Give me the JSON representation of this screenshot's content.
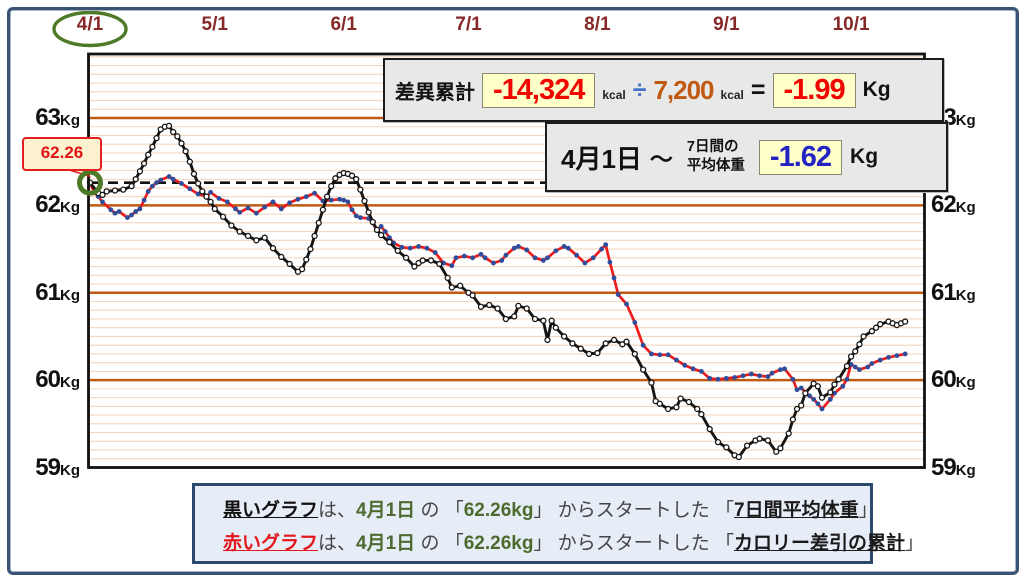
{
  "annotations": {
    "start_callout": "62.26",
    "baseline_value": 62.26,
    "highlighted_tick": "4/1"
  },
  "info_boxes": {
    "diff": {
      "label": "差異累計",
      "value": "-14,324",
      "unit1": "kcal",
      "op": "÷",
      "divisor": "7,200",
      "unit2": "kcal",
      "equals": "=",
      "result": "-1.99",
      "result_unit": "Kg"
    },
    "avg": {
      "date": "4月1日",
      "tilde": "〜",
      "label1": "7日間の",
      "label2": "平均体重",
      "value": "-1.62",
      "unit": "Kg"
    }
  },
  "legend": {
    "lines": [
      {
        "segments": [
          {
            "t": "黒いグラフ",
            "s": "ku"
          },
          {
            "t": "は、",
            "s": "plain"
          },
          {
            "t": "4月1日",
            "s": "green"
          },
          {
            "t": " の 「",
            "s": "plain"
          },
          {
            "t": "62.26kg",
            "s": "green"
          },
          {
            "t": "」 からスタートした 「",
            "s": "plain"
          },
          {
            "t": "7日間平均体重",
            "s": "bu"
          },
          {
            "t": "」",
            "s": "plain"
          }
        ]
      },
      {
        "segments": [
          {
            "t": "赤いグラフ",
            "s": "ru"
          },
          {
            "t": "は、",
            "s": "plain"
          },
          {
            "t": "4月1日",
            "s": "green"
          },
          {
            "t": " の 「",
            "s": "plain"
          },
          {
            "t": "62.26kg",
            "s": "green"
          },
          {
            "t": "」 からスタートした 「",
            "s": "plain"
          },
          {
            "t": "カロリー差引の累計",
            "s": "bu"
          },
          {
            "t": "」",
            "s": "plain"
          }
        ]
      }
    ]
  },
  "colors": {
    "tick_maroon": "#872828",
    "grid_major": "#c05a13",
    "grid_minor": "#f4d7bf",
    "black_series": "#151515",
    "red_series": "#ee1c1c",
    "navy_dot": "#2e4d9b",
    "green_accent": "#4e7a28",
    "value_red": "#f00600",
    "value_blue": "#2424c4",
    "divisor_orange": "#c05a13"
  },
  "chart_data": {
    "type": "line",
    "title": "",
    "xlabel": "",
    "ylabel": "Kg",
    "x_unit": "days_from_april_1",
    "ylim": [
      59,
      63.72
    ],
    "grid": {
      "major_kg": [
        60,
        61,
        62,
        63
      ],
      "minor_step_kg": 0.1
    },
    "x_ticks": [
      {
        "label": "4/1",
        "day": 0,
        "highlight": true
      },
      {
        "label": "5/1",
        "day": 30
      },
      {
        "label": "6/1",
        "day": 61
      },
      {
        "label": "7/1",
        "day": 91
      },
      {
        "label": "8/1",
        "day": 122
      },
      {
        "label": "9/1",
        "day": 153
      },
      {
        "label": "10/1",
        "day": 183
      }
    ],
    "y_ticks": [
      {
        "num": "63",
        "unit": "Kg",
        "value": 63
      },
      {
        "num": "62",
        "unit": "Kg",
        "value": 62
      },
      {
        "num": "61",
        "unit": "Kg",
        "value": 61
      },
      {
        "num": "60",
        "unit": "Kg",
        "value": 60
      },
      {
        "num": "59",
        "unit": "Kg",
        "value": 59
      }
    ],
    "baseline": {
      "value": 62.26,
      "style": "black-dashed"
    },
    "series": [
      {
        "name": "7日間平均体重",
        "color": "#151515",
        "marker": "white-circle",
        "points": [
          [
            0,
            62.26
          ],
          [
            2,
            62.14
          ],
          [
            3,
            62.12
          ],
          [
            4,
            62.16
          ],
          [
            6,
            62.17
          ],
          [
            8,
            62.18
          ],
          [
            10,
            62.22
          ],
          [
            11,
            62.3
          ],
          [
            12,
            62.39
          ],
          [
            13,
            62.48
          ],
          [
            14,
            62.58
          ],
          [
            15,
            62.67
          ],
          [
            16,
            62.77
          ],
          [
            17,
            62.87
          ],
          [
            18,
            62.9
          ],
          [
            19,
            62.91
          ],
          [
            20,
            62.84
          ],
          [
            21,
            62.79
          ],
          [
            22,
            62.71
          ],
          [
            23,
            62.62
          ],
          [
            24,
            62.5
          ],
          [
            25,
            62.36
          ],
          [
            26,
            62.25
          ],
          [
            27,
            62.16
          ],
          [
            28,
            62.1
          ],
          [
            29,
            62.04
          ],
          [
            30,
            61.96
          ],
          [
            32,
            61.87
          ],
          [
            34,
            61.77
          ],
          [
            36,
            61.7
          ],
          [
            38,
            61.65
          ],
          [
            40,
            61.6
          ],
          [
            42,
            61.63
          ],
          [
            44,
            61.51
          ],
          [
            46,
            61.41
          ],
          [
            48,
            61.33
          ],
          [
            50,
            61.24
          ],
          [
            51,
            61.27
          ],
          [
            52,
            61.38
          ],
          [
            53,
            61.5
          ],
          [
            54,
            61.65
          ],
          [
            55,
            61.8
          ],
          [
            56,
            61.95
          ],
          [
            57,
            62.1
          ],
          [
            58,
            62.22
          ],
          [
            59,
            62.31
          ],
          [
            60,
            62.35
          ],
          [
            61,
            62.37
          ],
          [
            62,
            62.36
          ],
          [
            63,
            62.34
          ],
          [
            64,
            62.3
          ],
          [
            65,
            62.18
          ],
          [
            66,
            62.05
          ],
          [
            67,
            61.92
          ],
          [
            68,
            61.81
          ],
          [
            69,
            61.72
          ],
          [
            70,
            61.66
          ],
          [
            72,
            61.58
          ],
          [
            74,
            61.48
          ],
          [
            76,
            61.4
          ],
          [
            78,
            61.3
          ],
          [
            79,
            61.34
          ],
          [
            80,
            61.37
          ],
          [
            82,
            61.37
          ],
          [
            84,
            61.33
          ],
          [
            86,
            61.17
          ],
          [
            87,
            61.06
          ],
          [
            89,
            61.08
          ],
          [
            91,
            61.0
          ],
          [
            92,
            60.97
          ],
          [
            94,
            60.84
          ],
          [
            96,
            60.86
          ],
          [
            98,
            60.82
          ],
          [
            100,
            60.7
          ],
          [
            102,
            60.73
          ],
          [
            103,
            60.85
          ],
          [
            105,
            60.82
          ],
          [
            107,
            60.7
          ],
          [
            109,
            60.68
          ],
          [
            110,
            60.46
          ],
          [
            111,
            60.68
          ],
          [
            112,
            60.6
          ],
          [
            114,
            60.5
          ],
          [
            116,
            60.42
          ],
          [
            118,
            60.36
          ],
          [
            120,
            60.3
          ],
          [
            122,
            60.31
          ],
          [
            124,
            60.42
          ],
          [
            126,
            60.46
          ],
          [
            128,
            60.41
          ],
          [
            129,
            60.44
          ],
          [
            131,
            60.3
          ],
          [
            133,
            60.12
          ],
          [
            135,
            59.97
          ],
          [
            136,
            59.76
          ],
          [
            137,
            59.73
          ],
          [
            139,
            59.67
          ],
          [
            141,
            59.69
          ],
          [
            142,
            59.79
          ],
          [
            144,
            59.75
          ],
          [
            146,
            59.67
          ],
          [
            147,
            59.61
          ],
          [
            149,
            59.44
          ],
          [
            151,
            59.29
          ],
          [
            153,
            59.23
          ],
          [
            155,
            59.14
          ],
          [
            156,
            59.12
          ],
          [
            158,
            59.25
          ],
          [
            160,
            59.31
          ],
          [
            161,
            59.33
          ],
          [
            163,
            59.31
          ],
          [
            165,
            59.18
          ],
          [
            166,
            59.22
          ],
          [
            168,
            59.39
          ],
          [
            169,
            59.55
          ],
          [
            170,
            59.67
          ],
          [
            171,
            59.71
          ],
          [
            172,
            59.85
          ],
          [
            174,
            59.96
          ],
          [
            175,
            59.93
          ],
          [
            176,
            59.8
          ],
          [
            178,
            59.86
          ],
          [
            179,
            59.95
          ],
          [
            180,
            60.01
          ],
          [
            182,
            60.16
          ],
          [
            183,
            60.27
          ],
          [
            184,
            60.33
          ],
          [
            185,
            60.41
          ],
          [
            186,
            60.5
          ],
          [
            188,
            60.56
          ],
          [
            189,
            60.6
          ],
          [
            190,
            60.64
          ],
          [
            192,
            60.67
          ],
          [
            193,
            60.65
          ],
          [
            194,
            60.63
          ],
          [
            195,
            60.65
          ],
          [
            196,
            60.67
          ]
        ]
      },
      {
        "name": "カロリー差引の累計",
        "color": "#ee1c1c",
        "marker": "navy-dot",
        "points": [
          [
            0,
            62.26
          ],
          [
            1,
            62.15
          ],
          [
            2,
            62.1
          ],
          [
            3,
            62.04
          ],
          [
            5,
            61.95
          ],
          [
            6,
            61.91
          ],
          [
            7,
            61.93
          ],
          [
            9,
            61.86
          ],
          [
            10,
            61.89
          ],
          [
            11,
            61.93
          ],
          [
            12,
            61.96
          ],
          [
            13,
            62.06
          ],
          [
            14,
            62.16
          ],
          [
            15,
            62.22
          ],
          [
            16,
            62.26
          ],
          [
            17,
            62.29
          ],
          [
            19,
            62.33
          ],
          [
            20,
            62.3
          ],
          [
            22,
            62.25
          ],
          [
            24,
            62.19
          ],
          [
            26,
            62.13
          ],
          [
            28,
            62.1
          ],
          [
            29,
            62.15
          ],
          [
            31,
            62.08
          ],
          [
            33,
            62.04
          ],
          [
            35,
            61.96
          ],
          [
            36,
            61.92
          ],
          [
            38,
            61.97
          ],
          [
            40,
            61.91
          ],
          [
            42,
            61.98
          ],
          [
            44,
            62.04
          ],
          [
            46,
            61.96
          ],
          [
            48,
            62.03
          ],
          [
            50,
            62.07
          ],
          [
            52,
            62.1
          ],
          [
            54,
            62.14
          ],
          [
            56,
            62.05
          ],
          [
            58,
            62.06
          ],
          [
            60,
            62.07
          ],
          [
            61,
            62.06
          ],
          [
            62,
            62.04
          ],
          [
            63,
            61.95
          ],
          [
            64,
            61.88
          ],
          [
            65,
            61.86
          ],
          [
            67,
            61.85
          ],
          [
            68,
            61.8
          ],
          [
            69,
            61.71
          ],
          [
            70,
            61.76
          ],
          [
            71,
            61.7
          ],
          [
            72,
            61.63
          ],
          [
            73,
            61.57
          ],
          [
            75,
            61.52
          ],
          [
            77,
            61.51
          ],
          [
            79,
            61.53
          ],
          [
            81,
            61.51
          ],
          [
            83,
            61.46
          ],
          [
            85,
            61.34
          ],
          [
            87,
            61.31
          ],
          [
            88,
            61.4
          ],
          [
            90,
            61.42
          ],
          [
            92,
            61.4
          ],
          [
            94,
            61.44
          ],
          [
            95,
            61.4
          ],
          [
            97,
            61.34
          ],
          [
            99,
            61.37
          ],
          [
            100,
            61.43
          ],
          [
            102,
            61.51
          ],
          [
            103,
            61.53
          ],
          [
            105,
            61.49
          ],
          [
            107,
            61.4
          ],
          [
            109,
            61.37
          ],
          [
            110,
            61.4
          ],
          [
            112,
            61.48
          ],
          [
            114,
            61.53
          ],
          [
            115,
            61.51
          ],
          [
            117,
            61.43
          ],
          [
            119,
            61.34
          ],
          [
            121,
            61.4
          ],
          [
            123,
            61.5
          ],
          [
            124,
            61.55
          ],
          [
            125,
            61.35
          ],
          [
            126,
            61.17
          ],
          [
            127,
            60.98
          ],
          [
            129,
            60.87
          ],
          [
            131,
            60.66
          ],
          [
            133,
            60.4
          ],
          [
            135,
            60.3
          ],
          [
            137,
            60.29
          ],
          [
            139,
            60.29
          ],
          [
            141,
            60.23
          ],
          [
            143,
            60.17
          ],
          [
            145,
            60.13
          ],
          [
            147,
            60.1
          ],
          [
            149,
            60.02
          ],
          [
            151,
            60.01
          ],
          [
            153,
            60.02
          ],
          [
            155,
            60.03
          ],
          [
            157,
            60.05
          ],
          [
            159,
            60.07
          ],
          [
            161,
            60.05
          ],
          [
            163,
            60.04
          ],
          [
            164,
            60.08
          ],
          [
            166,
            60.12
          ],
          [
            167,
            60.13
          ],
          [
            169,
            60.01
          ],
          [
            170,
            59.89
          ],
          [
            171,
            59.91
          ],
          [
            173,
            59.82
          ],
          [
            174,
            59.78
          ],
          [
            175,
            59.73
          ],
          [
            176,
            59.67
          ],
          [
            178,
            59.78
          ],
          [
            179,
            59.85
          ],
          [
            181,
            59.93
          ],
          [
            182,
            60.01
          ],
          [
            183,
            60.18
          ],
          [
            184,
            60.15
          ],
          [
            185,
            60.12
          ],
          [
            187,
            60.15
          ],
          [
            188,
            60.19
          ],
          [
            190,
            60.23
          ],
          [
            192,
            60.26
          ],
          [
            194,
            60.28
          ],
          [
            196,
            60.3
          ]
        ]
      }
    ]
  }
}
